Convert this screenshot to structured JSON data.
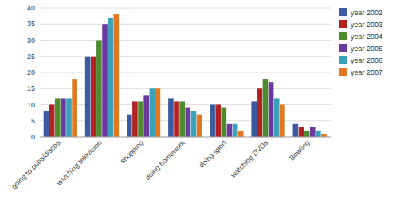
{
  "chart_data": {
    "type": "bar",
    "categories": [
      "going to pubs/discos",
      "watching television",
      "shopping",
      "doing homework",
      "doing sport",
      "watching DVDs",
      "Bowling"
    ],
    "series": [
      {
        "name": "year 2002",
        "color": "#3A5BA0",
        "values": [
          8,
          25,
          7,
          12,
          10,
          11,
          4
        ]
      },
      {
        "name": "year 2003",
        "color": "#B22222",
        "values": [
          10,
          25,
          11,
          11,
          10,
          15,
          3
        ]
      },
      {
        "name": "year 2004",
        "color": "#4E8A2E",
        "values": [
          12,
          30,
          11,
          11,
          9,
          18,
          2
        ]
      },
      {
        "name": "year 2005",
        "color": "#6B3A9E",
        "values": [
          12,
          35,
          13,
          9,
          4,
          17,
          3
        ]
      },
      {
        "name": "year 2006",
        "color": "#3BA0BC",
        "values": [
          12,
          37,
          15,
          8,
          4,
          12,
          2
        ]
      },
      {
        "name": "year 2007",
        "color": "#E07820",
        "values": [
          18,
          38,
          15,
          7,
          2,
          10,
          1
        ]
      }
    ],
    "ylim": [
      0,
      40
    ],
    "yticks": [
      0,
      5,
      10,
      15,
      20,
      25,
      30,
      35,
      40
    ],
    "grid": true,
    "legend": "right"
  }
}
